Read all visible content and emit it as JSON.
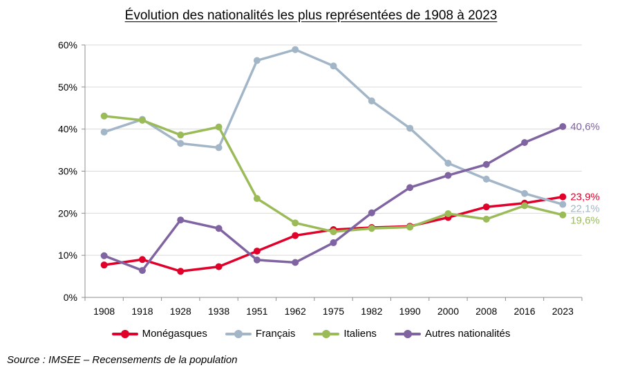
{
  "title": "Évolution des nationalités les plus représentées de 1908 à 2023",
  "source": "Source : IMSEE – Recensements de la population",
  "chart_data": {
    "type": "line",
    "categories": [
      "1908",
      "1918",
      "1928",
      "1938",
      "1951",
      "1962",
      "1975",
      "1982",
      "1990",
      "2000",
      "2008",
      "2016",
      "2023"
    ],
    "y_ticks": [
      "0%",
      "10%",
      "20%",
      "30%",
      "40%",
      "50%",
      "60%"
    ],
    "ylim": [
      0,
      60
    ],
    "grid": "horizontal",
    "legend_position": "bottom",
    "series": [
      {
        "name": "Monégasques",
        "color": "#e0002a",
        "values": [
          7.7,
          9.0,
          6.2,
          7.3,
          11.0,
          14.7,
          16.1,
          16.6,
          16.9,
          19.0,
          21.5,
          22.4,
          23.9
        ],
        "end_label": "23,9%"
      },
      {
        "name": "Français",
        "color": "#a2b6c8",
        "values": [
          39.3,
          42.3,
          36.6,
          35.6,
          56.3,
          58.9,
          55.0,
          46.7,
          40.2,
          31.9,
          28.1,
          24.7,
          22.1
        ],
        "end_label": "22,1%"
      },
      {
        "name": "Italiens",
        "color": "#9bbb59",
        "values": [
          43.1,
          42.1,
          38.6,
          40.5,
          23.5,
          17.7,
          15.6,
          16.4,
          16.7,
          19.9,
          18.6,
          21.8,
          19.6
        ],
        "end_label": "19,6%"
      },
      {
        "name": "Autres nationalités",
        "color": "#8064a2",
        "values": [
          9.9,
          6.4,
          18.4,
          16.4,
          8.9,
          8.3,
          13.0,
          20.1,
          26.1,
          29.0,
          31.6,
          36.8,
          40.6
        ],
        "end_label": "40,6%"
      }
    ]
  }
}
